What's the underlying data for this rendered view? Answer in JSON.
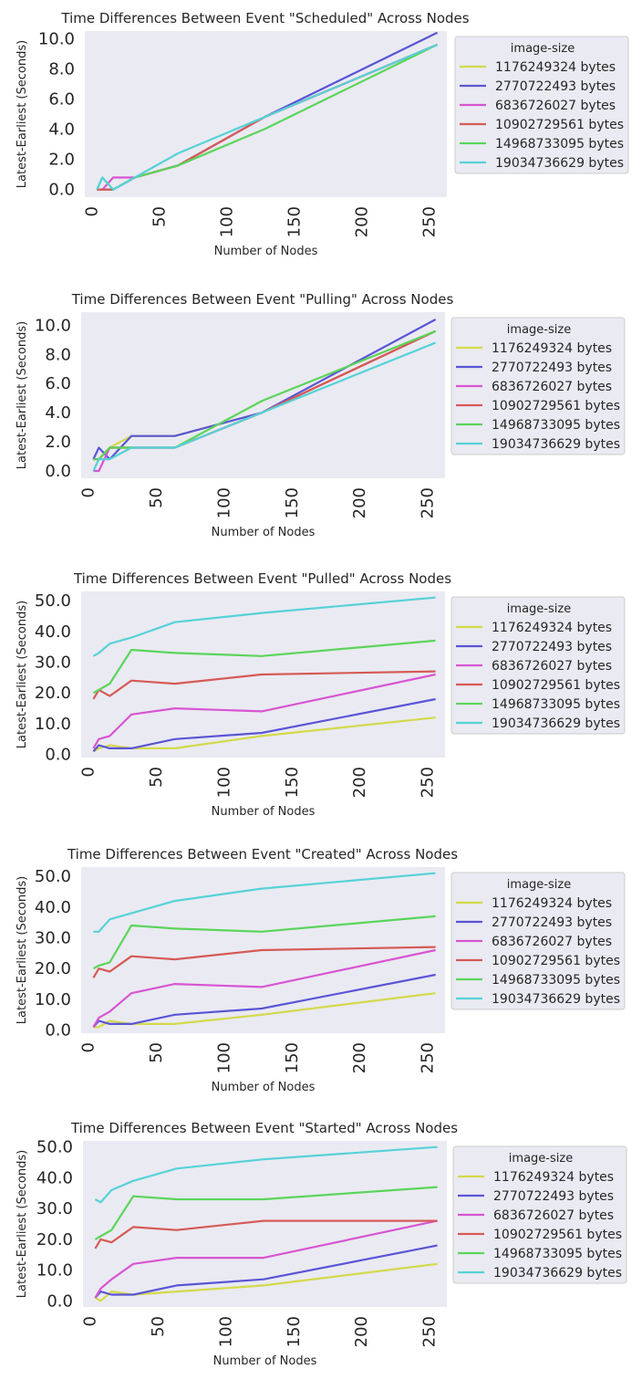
{
  "colors": {
    "plot_bg": "#eaeaf2",
    "legend_bg": "#eaeaf2",
    "legend_border": "#cccccc",
    "text": "#262626",
    "series": [
      "#d4d94a",
      "#5a55d6",
      "#d755d2",
      "#d55a55",
      "#5ad55a",
      "#55d2d7"
    ]
  },
  "legend_title": "image-size",
  "series_names": [
    "1176249324 bytes",
    "2770722493 bytes",
    "6836726027 bytes",
    "10902729561 bytes",
    "14968733095 bytes",
    "19034736629 bytes"
  ],
  "chart_data": [
    {
      "type": "line",
      "title": "Time Differences Between Event \"Scheduled\" Across Nodes",
      "xlabel": "Number of Nodes",
      "ylabel": "Latest-Earliest (Seconds)",
      "xlim": [
        -5,
        263
      ],
      "ylim": [
        -0.5,
        10.5
      ],
      "xticks": [
        0,
        50,
        100,
        150,
        200,
        250
      ],
      "yticks": [
        0,
        2,
        4,
        6,
        8,
        10
      ],
      "ytick_labels": [
        "0.0",
        "2.0",
        "4.0",
        "6.0",
        "8.0",
        "10.0"
      ],
      "legend_position": "right",
      "grid": false,
      "x": [
        4,
        8,
        16,
        32,
        64,
        128,
        256
      ],
      "series": [
        {
          "name": "1176249324 bytes",
          "values": [
            0,
            0,
            0,
            0.8,
            1.6,
            4.8,
            9.6
          ]
        },
        {
          "name": "2770722493 bytes",
          "values": [
            0,
            0,
            0,
            0.8,
            1.6,
            4.8,
            10.4
          ]
        },
        {
          "name": "6836726027 bytes",
          "values": [
            0,
            0,
            0.8,
            0.8,
            1.6,
            4.8,
            9.6
          ]
        },
        {
          "name": "10902729561 bytes",
          "values": [
            0,
            0,
            0,
            0.8,
            1.6,
            4.8,
            9.6
          ]
        },
        {
          "name": "14968733095 bytes",
          "values": [
            0,
            0.8,
            0,
            0.8,
            1.6,
            4.0,
            9.6
          ]
        },
        {
          "name": "19034736629 bytes",
          "values": [
            0,
            0.8,
            0,
            0.8,
            2.4,
            4.8,
            9.6
          ]
        }
      ]
    },
    {
      "type": "line",
      "title": "Time Differences Between Event \"Pulling\" Across Nodes",
      "xlabel": "Number of Nodes",
      "ylabel": "Latest-Earliest (Seconds)",
      "xlim": [
        -5,
        263
      ],
      "ylim": [
        -0.5,
        10.9
      ],
      "xticks": [
        0,
        50,
        100,
        150,
        200,
        250
      ],
      "yticks": [
        0,
        2,
        4,
        6,
        8,
        10
      ],
      "ytick_labels": [
        "0.0",
        "2.0",
        "4.0",
        "6.0",
        "8.0",
        "10.0"
      ],
      "legend_position": "right",
      "grid": false,
      "x": [
        4,
        8,
        16,
        32,
        64,
        128,
        256
      ],
      "series": [
        {
          "name": "1176249324 bytes",
          "values": [
            0.8,
            0.8,
            1.6,
            2.4,
            2.4,
            4.0,
            9.6
          ]
        },
        {
          "name": "2770722493 bytes",
          "values": [
            0.8,
            1.6,
            0.8,
            2.4,
            2.4,
            4.0,
            10.4
          ]
        },
        {
          "name": "6836726027 bytes",
          "values": [
            0,
            0,
            1.6,
            1.6,
            1.6,
            4.0,
            9.6
          ]
        },
        {
          "name": "10902729561 bytes",
          "values": [
            0.8,
            0.8,
            1.6,
            1.6,
            1.6,
            4.0,
            9.6
          ]
        },
        {
          "name": "14968733095 bytes",
          "values": [
            0.8,
            0.8,
            1.6,
            1.6,
            1.6,
            4.8,
            9.6
          ]
        },
        {
          "name": "19034736629 bytes",
          "values": [
            0,
            0.8,
            0.8,
            1.6,
            1.6,
            4.0,
            8.8
          ]
        }
      ]
    },
    {
      "type": "line",
      "title": "Time Differences Between Event \"Pulled\" Across Nodes",
      "xlabel": "Number of Nodes",
      "ylabel": "Latest-Earliest (Seconds)",
      "xlim": [
        -5,
        263
      ],
      "ylim": [
        -1,
        53
      ],
      "xticks": [
        0,
        50,
        100,
        150,
        200,
        250
      ],
      "yticks": [
        0,
        10,
        20,
        30,
        40,
        50
      ],
      "ytick_labels": [
        "0.0",
        "10.0",
        "20.0",
        "30.0",
        "40.0",
        "50.0"
      ],
      "legend_position": "right",
      "grid": false,
      "x": [
        4,
        8,
        16,
        32,
        64,
        128,
        256
      ],
      "series": [
        {
          "name": "1176249324 bytes",
          "values": [
            1,
            2,
            3,
            2,
            2,
            6,
            12
          ]
        },
        {
          "name": "2770722493 bytes",
          "values": [
            1,
            3,
            2,
            2,
            5,
            7,
            18
          ]
        },
        {
          "name": "6836726027 bytes",
          "values": [
            2,
            5,
            6,
            13,
            15,
            14,
            26
          ]
        },
        {
          "name": "10902729561 bytes",
          "values": [
            18,
            21,
            19,
            24,
            23,
            26,
            27
          ]
        },
        {
          "name": "14968733095 bytes",
          "values": [
            20,
            21,
            23,
            34,
            33,
            32,
            37
          ]
        },
        {
          "name": "19034736629 bytes",
          "values": [
            32,
            33,
            36,
            38,
            43,
            46,
            51
          ]
        }
      ]
    },
    {
      "type": "line",
      "title": "Time Differences Between Event \"Created\" Across Nodes",
      "xlabel": "Number of Nodes",
      "ylabel": "Latest-Earliest (Seconds)",
      "xlim": [
        -5,
        263
      ],
      "ylim": [
        -1,
        53
      ],
      "xticks": [
        0,
        50,
        100,
        150,
        200,
        250
      ],
      "yticks": [
        0,
        10,
        20,
        30,
        40,
        50
      ],
      "ytick_labels": [
        "0.0",
        "10.0",
        "20.0",
        "30.0",
        "40.0",
        "50.0"
      ],
      "legend_position": "right",
      "grid": false,
      "x": [
        4,
        8,
        16,
        32,
        64,
        128,
        256
      ],
      "series": [
        {
          "name": "1176249324 bytes",
          "values": [
            1,
            1,
            3,
            2,
            2,
            5,
            12
          ]
        },
        {
          "name": "2770722493 bytes",
          "values": [
            1,
            3,
            2,
            2,
            5,
            7,
            18
          ]
        },
        {
          "name": "6836726027 bytes",
          "values": [
            1,
            4,
            6,
            12,
            15,
            14,
            26
          ]
        },
        {
          "name": "10902729561 bytes",
          "values": [
            17,
            20,
            19,
            24,
            23,
            26,
            27
          ]
        },
        {
          "name": "14968733095 bytes",
          "values": [
            20,
            21,
            22,
            34,
            33,
            32,
            37
          ]
        },
        {
          "name": "19034736629 bytes",
          "values": [
            32,
            32,
            36,
            38,
            42,
            46,
            51
          ]
        }
      ]
    },
    {
      "type": "line",
      "title": "Time Differences Between Event \"Started\" Across Nodes",
      "xlabel": "Number of Nodes",
      "ylabel": "Latest-Earliest (Seconds)",
      "xlim": [
        -5,
        263
      ],
      "ylim": [
        -2,
        52
      ],
      "xticks": [
        0,
        50,
        100,
        150,
        200,
        250
      ],
      "yticks": [
        0,
        10,
        20,
        30,
        40,
        50
      ],
      "ytick_labels": [
        "0.0",
        "10.0",
        "20.0",
        "30.0",
        "40.0",
        "50.0"
      ],
      "legend_position": "right",
      "grid": false,
      "x": [
        4,
        8,
        16,
        32,
        64,
        128,
        256
      ],
      "series": [
        {
          "name": "1176249324 bytes",
          "values": [
            1,
            0,
            3,
            2,
            3,
            5,
            12
          ]
        },
        {
          "name": "2770722493 bytes",
          "values": [
            1,
            3,
            2,
            2,
            5,
            7,
            18
          ]
        },
        {
          "name": "6836726027 bytes",
          "values": [
            1,
            4,
            7,
            12,
            14,
            14,
            26
          ]
        },
        {
          "name": "10902729561 bytes",
          "values": [
            17,
            20,
            19,
            24,
            23,
            26,
            26
          ]
        },
        {
          "name": "14968733095 bytes",
          "values": [
            20,
            21,
            23,
            34,
            33,
            33,
            37
          ]
        },
        {
          "name": "19034736629 bytes",
          "values": [
            33,
            32,
            36,
            39,
            43,
            46,
            50
          ]
        }
      ]
    }
  ]
}
